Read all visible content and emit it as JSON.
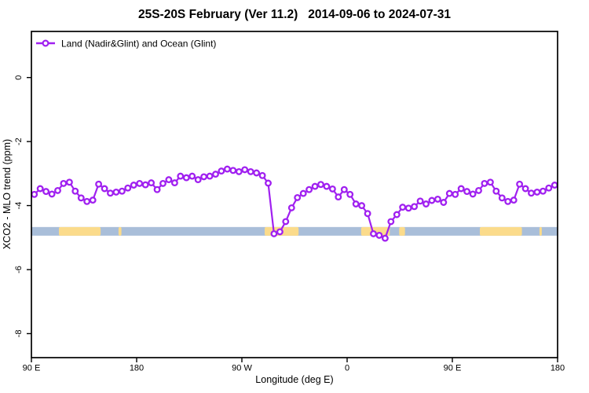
{
  "chart_data": {
    "type": "line",
    "title": "25S-20S February (Ver 11.2)   2014-09-06 to 2024-07-31",
    "xlabel": "Longitude (deg E)",
    "ylabel": "XCO2 - MLO trend (ppm)",
    "legend": [
      {
        "label": "Land (Nadir&Glint) and Ocean (Glint)",
        "color": "#A020F0",
        "marker": "open-circle"
      }
    ],
    "legend_position": "top-left",
    "grid": false,
    "x_axis": {
      "range": [
        90,
        540
      ],
      "note": "longitude wraps: 90E to 180, 90W, 0, 90E, 180",
      "ticks": [
        {
          "pos": 90,
          "label": "90 E"
        },
        {
          "pos": 180,
          "label": "180"
        },
        {
          "pos": 270,
          "label": "90 W"
        },
        {
          "pos": 360,
          "label": "0"
        },
        {
          "pos": 450,
          "label": "90 E"
        },
        {
          "pos": 540,
          "label": "180"
        }
      ]
    },
    "y_axis": {
      "range": [
        -8.75,
        1.44
      ],
      "ticks": [
        {
          "pos": 0,
          "label": "0"
        },
        {
          "pos": -2,
          "label": "-2"
        },
        {
          "pos": -4,
          "label": "-4"
        },
        {
          "pos": -6,
          "label": "-6"
        },
        {
          "pos": -8,
          "label": "-8"
        }
      ]
    },
    "series": [
      {
        "name": "Land (Nadir&Glint) and Ocean (Glint)",
        "x": [
          92.5,
          97.5,
          102.5,
          107.5,
          112.5,
          117.5,
          122.5,
          127.5,
          132.5,
          137.5,
          142.5,
          147.5,
          152.5,
          157.5,
          162.5,
          167.5,
          172.5,
          177.5,
          182.5,
          187.5,
          192.5,
          197.5,
          202.5,
          207.5,
          212.5,
          217.5,
          222.5,
          227.5,
          232.5,
          237.5,
          242.5,
          247.5,
          252.5,
          257.5,
          262.5,
          267.5,
          272.5,
          277.5,
          282.5,
          287.5,
          292.5,
          297.5,
          302.5,
          307.5,
          312.5,
          317.5,
          322.5,
          327.5,
          332.5,
          337.5,
          342.5,
          347.5,
          352.5,
          357.5,
          362.5,
          367.5,
          372.5,
          377.5,
          382.5,
          387.5,
          392.5,
          397.5,
          402.5,
          407.5,
          412.5,
          417.5,
          422.5,
          427.5,
          432.5,
          437.5,
          442.5,
          447.5,
          452.5,
          457.5,
          462.5,
          467.5,
          472.5,
          477.5,
          482.5,
          487.5,
          492.5,
          497.5,
          502.5,
          507.5,
          512.5,
          517.5,
          522.5,
          527.5,
          532.5,
          537.5
        ],
        "y": [
          -3.65,
          -3.47,
          -3.56,
          -3.64,
          -3.53,
          -3.31,
          -3.27,
          -3.55,
          -3.76,
          -3.87,
          -3.83,
          -3.33,
          -3.47,
          -3.61,
          -3.58,
          -3.55,
          -3.45,
          -3.36,
          -3.31,
          -3.35,
          -3.29,
          -3.5,
          -3.31,
          -3.19,
          -3.29,
          -3.08,
          -3.13,
          -3.08,
          -3.19,
          -3.1,
          -3.08,
          -3.02,
          -2.92,
          -2.86,
          -2.9,
          -2.94,
          -2.88,
          -2.94,
          -2.98,
          -3.06,
          -3.3,
          -4.88,
          -4.82,
          -4.5,
          -4.07,
          -3.75,
          -3.62,
          -3.5,
          -3.4,
          -3.34,
          -3.4,
          -3.48,
          -3.73,
          -3.5,
          -3.65,
          -3.95,
          -4.0,
          -4.25,
          -4.88,
          -4.93,
          -5.02,
          -4.5,
          -4.28,
          -4.05,
          -4.08,
          -4.03,
          -3.86,
          -3.95,
          -3.84,
          -3.8,
          -3.9,
          -3.62,
          -3.65,
          -3.47,
          -3.56,
          -3.64,
          -3.53,
          -3.31,
          -3.27,
          -3.55,
          -3.76,
          -3.87,
          -3.83,
          -3.33,
          -3.47,
          -3.61,
          -3.58,
          -3.55,
          -3.45,
          -3.36
        ]
      }
    ],
    "surface_band": {
      "description": "ocean/land strip at 25S-20S",
      "y_top": -4.67,
      "y_bottom": -4.94,
      "ocean_color": "#A9BED9",
      "land_color": "#FBDB8B",
      "land_longitudes": [
        [
          113.5,
          149.2
        ],
        [
          164.5,
          167.0
        ],
        [
          289.5,
          318.5
        ],
        [
          372.0,
          396.5
        ],
        [
          404.5,
          409.5
        ],
        [
          473.5,
          509.5
        ],
        [
          524.5,
          526.5
        ]
      ]
    },
    "colors": {
      "line": "#A020F0",
      "marker_fill": "#FFFFFF",
      "axis": "#000000",
      "background": "#FFFFFF"
    }
  }
}
